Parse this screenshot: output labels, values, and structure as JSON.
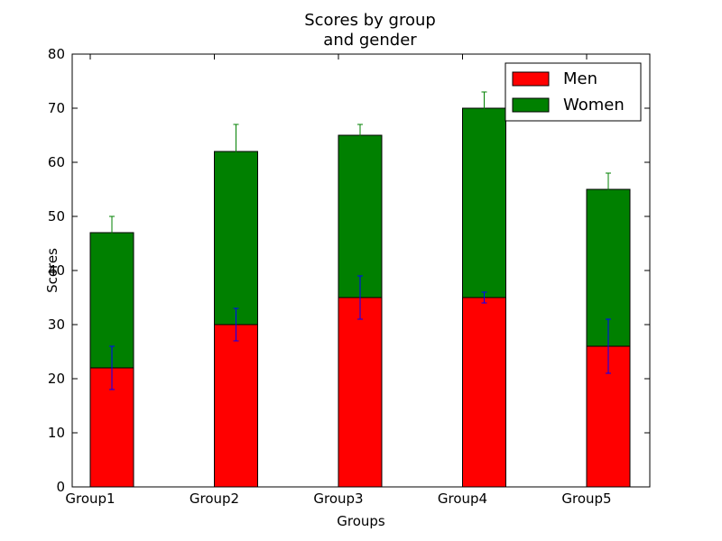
{
  "chart_data": {
    "type": "stacked_bar",
    "title": "Scores by group\nand gender",
    "xlabel": "Groups",
    "ylabel": "Scores",
    "categories": [
      "Group1",
      "Group2",
      "Group3",
      "Group4",
      "Group5"
    ],
    "series": [
      {
        "name": "Men",
        "color": "#ff0000",
        "error_color": "#0000ff",
        "values": [
          22,
          30,
          35,
          35,
          26
        ],
        "errors": [
          4,
          3,
          4,
          1,
          5
        ]
      },
      {
        "name": "Women",
        "color": "#008000",
        "error_color": "#008000",
        "values": [
          25,
          32,
          30,
          35,
          29
        ],
        "errors": [
          3,
          5,
          2,
          3,
          3
        ]
      }
    ],
    "ylim": [
      0,
      80
    ],
    "yticks": [
      0,
      10,
      20,
      30,
      40,
      50,
      60,
      70,
      80
    ],
    "legend": "upper right",
    "grid": false
  }
}
